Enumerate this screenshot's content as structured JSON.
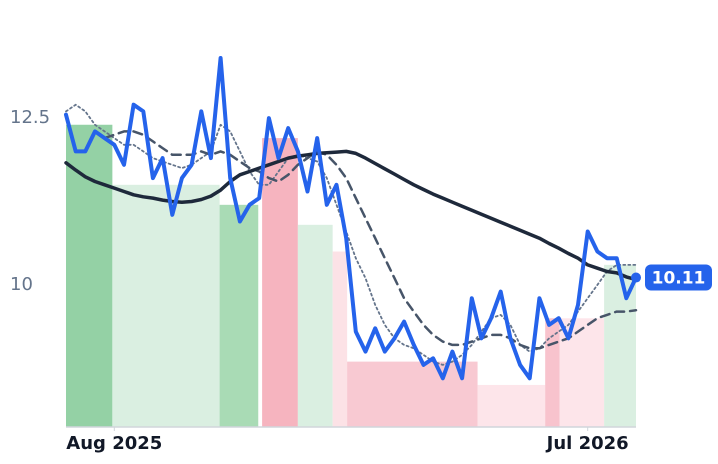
{
  "chart_data": {
    "type": "line",
    "xlim": [
      0,
      59
    ],
    "ylim": [
      7.87,
      14.0
    ],
    "xticks": [
      {
        "value": 5,
        "label": "Aug 2025"
      },
      {
        "value": 54,
        "label": "Jul 2026"
      }
    ],
    "yticks": [
      10.0,
      12.5
    ],
    "bands": [
      {
        "start": 0,
        "end": 4.8,
        "value": 12.4,
        "color": "#81c995"
      },
      {
        "start": 4.8,
        "end": 15.9,
        "value": 11.5,
        "color": "#d4ecdc"
      },
      {
        "start": 15.9,
        "end": 19.9,
        "value": 11.2,
        "color": "#9ad5a8"
      },
      {
        "start": 20.3,
        "end": 24.0,
        "value": 12.2,
        "color": "#f4a7b4"
      },
      {
        "start": 24.0,
        "end": 27.6,
        "value": 10.9,
        "color": "#d4ecdc"
      },
      {
        "start": 27.6,
        "end": 29.1,
        "value": 10.5,
        "color": "#fbdde2"
      },
      {
        "start": 29.1,
        "end": 42.6,
        "value": 8.85,
        "color": "#f7c0ca"
      },
      {
        "start": 42.6,
        "end": 49.6,
        "value": 8.5,
        "color": "#fde1e6"
      },
      {
        "start": 49.6,
        "end": 51.1,
        "value": 9.5,
        "color": "#f7b8c4"
      },
      {
        "start": 51.1,
        "end": 55.7,
        "value": 9.5,
        "color": "#fde1e6"
      },
      {
        "start": 55.7,
        "end": 59,
        "value": 10.3,
        "color": "#d4ecdc"
      }
    ],
    "series": [
      {
        "color": "#2563eb",
        "width": 4,
        "dash": "solid",
        "values": [
          12.55,
          12.0,
          12.0,
          12.3,
          12.2,
          12.1,
          11.8,
          12.7,
          12.6,
          11.6,
          11.9,
          11.05,
          11.6,
          11.8,
          12.6,
          11.9,
          13.4,
          11.6,
          10.95,
          11.2,
          11.3,
          12.5,
          11.9,
          12.35,
          12.0,
          11.4,
          12.2,
          11.2,
          11.5,
          10.7,
          9.3,
          9.0,
          9.35,
          9.0,
          9.2,
          9.45,
          9.1,
          8.8,
          8.9,
          8.6,
          9.0,
          8.6,
          9.8,
          9.2,
          9.5,
          9.9,
          9.2,
          8.8,
          8.6,
          9.8,
          9.4,
          9.5,
          9.2,
          9.7,
          10.8,
          10.5,
          10.4,
          10.4,
          9.8,
          10.11
        ]
      },
      {
        "color": "#1e293b",
        "width": 3.5,
        "dash": "solid",
        "values": [
          11.83,
          11.72,
          11.62,
          11.55,
          11.5,
          11.45,
          11.4,
          11.35,
          11.32,
          11.3,
          11.27,
          11.25,
          11.24,
          11.25,
          11.28,
          11.33,
          11.42,
          11.55,
          11.65,
          11.7,
          11.75,
          11.8,
          11.85,
          11.9,
          11.93,
          11.95,
          11.97,
          11.98,
          11.99,
          12.0,
          11.97,
          11.9,
          11.82,
          11.74,
          11.66,
          11.58,
          11.5,
          11.43,
          11.36,
          11.3,
          11.24,
          11.18,
          11.12,
          11.06,
          11.0,
          10.94,
          10.88,
          10.82,
          10.76,
          10.7,
          10.62,
          10.55,
          10.47,
          10.4,
          10.3,
          10.25,
          10.2,
          10.18,
          10.12,
          10.08
        ]
      },
      {
        "color": "#475569",
        "width": 2.5,
        "dash": "dashed",
        "values": [
          null,
          null,
          null,
          null,
          12.2,
          12.25,
          12.3,
          12.3,
          12.25,
          12.15,
          12.05,
          11.95,
          11.95,
          11.95,
          12.0,
          11.95,
          12.0,
          11.95,
          11.85,
          11.75,
          11.7,
          11.6,
          11.55,
          11.65,
          11.8,
          11.9,
          12.0,
          11.95,
          11.8,
          11.6,
          11.3,
          11.0,
          10.7,
          10.4,
          10.1,
          9.8,
          9.6,
          9.4,
          9.25,
          9.15,
          9.1,
          9.1,
          9.15,
          9.2,
          9.25,
          9.25,
          9.2,
          9.1,
          9.05,
          9.05,
          9.1,
          9.15,
          9.2,
          9.3,
          9.4,
          9.5,
          9.55,
          9.6,
          9.6,
          9.62
        ]
      },
      {
        "color": "#64748b",
        "width": 1.8,
        "dash": "dotted",
        "values": [
          12.6,
          12.7,
          12.6,
          12.4,
          12.3,
          12.2,
          12.1,
          12.1,
          12.0,
          11.9,
          11.85,
          11.8,
          11.75,
          11.8,
          11.9,
          12.0,
          12.4,
          12.3,
          12.0,
          11.7,
          11.5,
          11.5,
          11.7,
          11.9,
          11.95,
          11.9,
          11.85,
          11.6,
          11.2,
          10.8,
          10.4,
          10.1,
          9.7,
          9.4,
          9.2,
          9.1,
          9.05,
          8.95,
          8.85,
          8.8,
          8.85,
          8.95,
          9.1,
          9.3,
          9.5,
          9.55,
          9.4,
          9.1,
          9.0,
          9.05,
          9.2,
          9.3,
          9.4,
          9.6,
          9.8,
          10.0,
          10.2,
          10.3,
          10.3,
          10.3
        ]
      }
    ]
  }
}
